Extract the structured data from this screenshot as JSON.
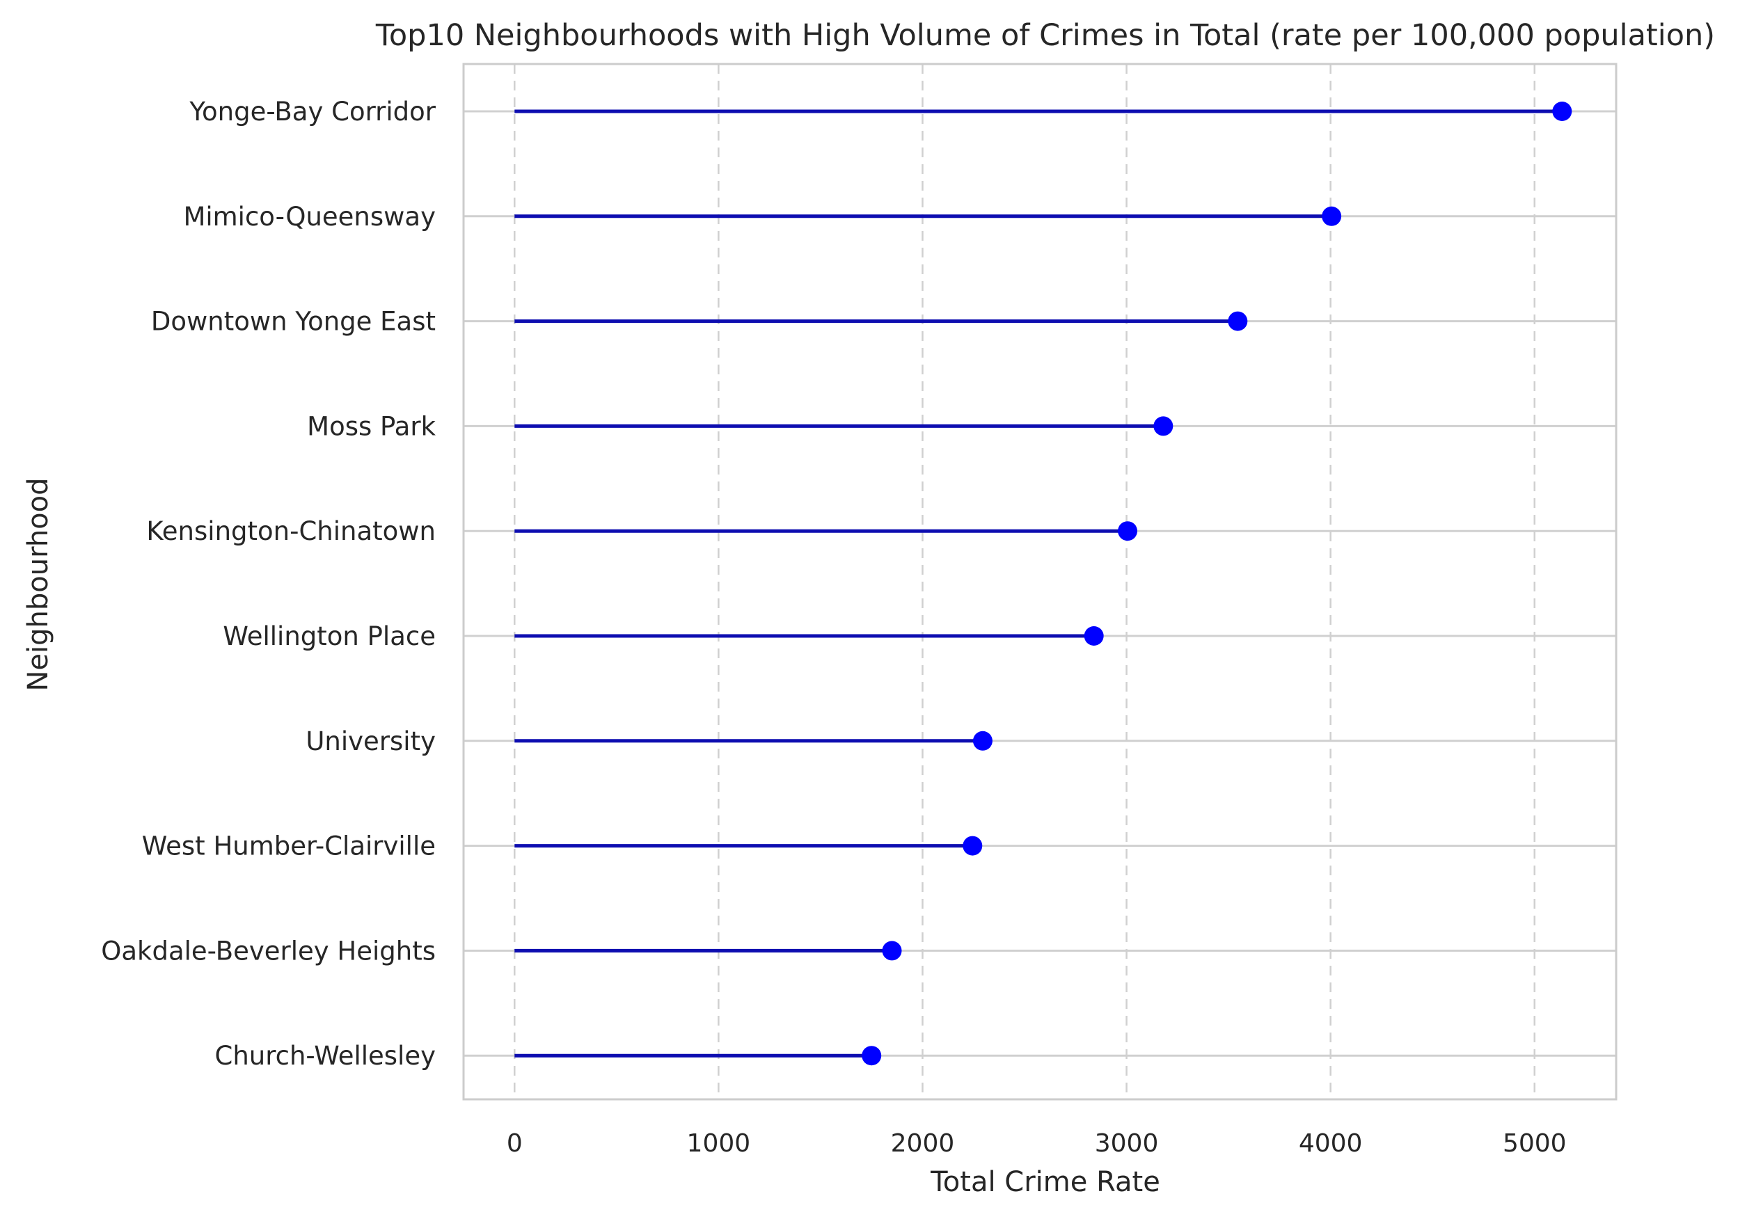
{
  "chart_data": {
    "type": "lollipop",
    "title": "Top10 Neighbourhoods with High Volume of Crimes in Total (rate per 100,000 population)",
    "xlabel": "Total Crime Rate",
    "ylabel": "Neighbourhood",
    "xlim": [
      -250,
      5400
    ],
    "xticks": [
      0,
      1000,
      2000,
      3000,
      4000,
      5000
    ],
    "xtick_labels": [
      "0",
      "1000",
      "2000",
      "3000",
      "4000",
      "5000"
    ],
    "grid": "x dashed, y solid",
    "categories": [
      "Yonge-Bay Corridor",
      "Mimico-Queensway",
      "Downtown Yonge East",
      "Moss Park",
      "Kensington-Chinatown",
      "Wellington Place",
      "University",
      "West Humber-Clairville",
      "Oakdale-Beverley Heights",
      "Church-Wellesley"
    ],
    "values": [
      5135,
      4005,
      3545,
      3180,
      3005,
      2840,
      2295,
      2245,
      1850,
      1750
    ],
    "colors": {
      "stem": "#0d0db0",
      "marker": "#0000ff",
      "grid": "#d0d0d0",
      "spine": "#cccccc"
    }
  }
}
